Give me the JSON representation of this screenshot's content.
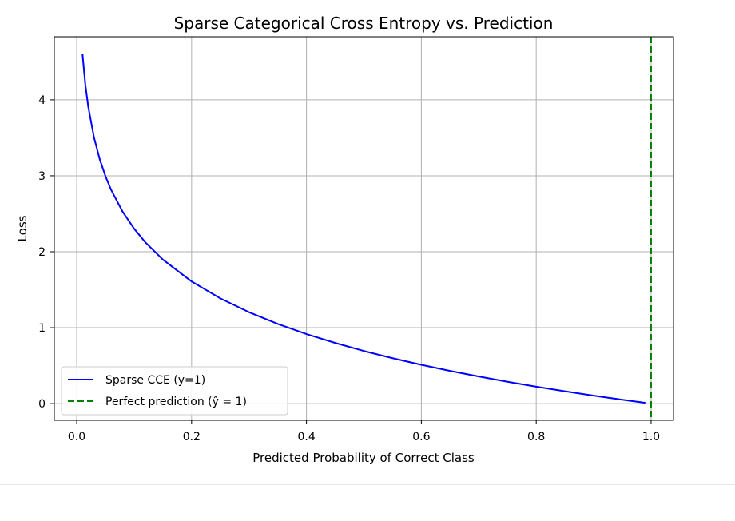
{
  "chart_data": {
    "type": "line",
    "title": "Sparse Categorical Cross Entropy vs. Prediction",
    "xlabel": "Predicted Probability of Correct Class",
    "ylabel": "Loss",
    "xlim": [
      -0.039,
      1.039
    ],
    "ylim": [
      -0.22,
      4.83
    ],
    "xticks": [
      0.0,
      0.2,
      0.4,
      0.6,
      0.8,
      1.0
    ],
    "xtick_labels": [
      "0.0",
      "0.2",
      "0.4",
      "0.6",
      "0.8",
      "1.0"
    ],
    "yticks": [
      0,
      1,
      2,
      3,
      4
    ],
    "ytick_labels": [
      "0",
      "1",
      "2",
      "3",
      "4"
    ],
    "grid": true,
    "legend_position": "lower-left",
    "series": [
      {
        "name": "Sparse CCE (y=1)",
        "style": "solid",
        "color": "#0000ff",
        "x": [
          0.01,
          0.015,
          0.02,
          0.03,
          0.04,
          0.05,
          0.06,
          0.08,
          0.1,
          0.12,
          0.15,
          0.2,
          0.25,
          0.3,
          0.35,
          0.4,
          0.45,
          0.5,
          0.55,
          0.6,
          0.65,
          0.7,
          0.75,
          0.8,
          0.85,
          0.9,
          0.95,
          0.99
        ],
        "y": [
          4.605,
          4.2,
          3.912,
          3.507,
          3.219,
          2.996,
          2.813,
          2.526,
          2.303,
          2.12,
          1.897,
          1.609,
          1.386,
          1.204,
          1.05,
          0.916,
          0.799,
          0.693,
          0.598,
          0.511,
          0.431,
          0.357,
          0.288,
          0.223,
          0.163,
          0.105,
          0.051,
          0.01
        ]
      },
      {
        "name": "Perfect prediction (ŷ = 1)",
        "style": "dashed",
        "color": "#008000",
        "vline_x": 1.0
      }
    ]
  },
  "colors": {
    "grid": "#b0b0b0",
    "axes": "#000000",
    "divider": "#e6e6e6"
  }
}
